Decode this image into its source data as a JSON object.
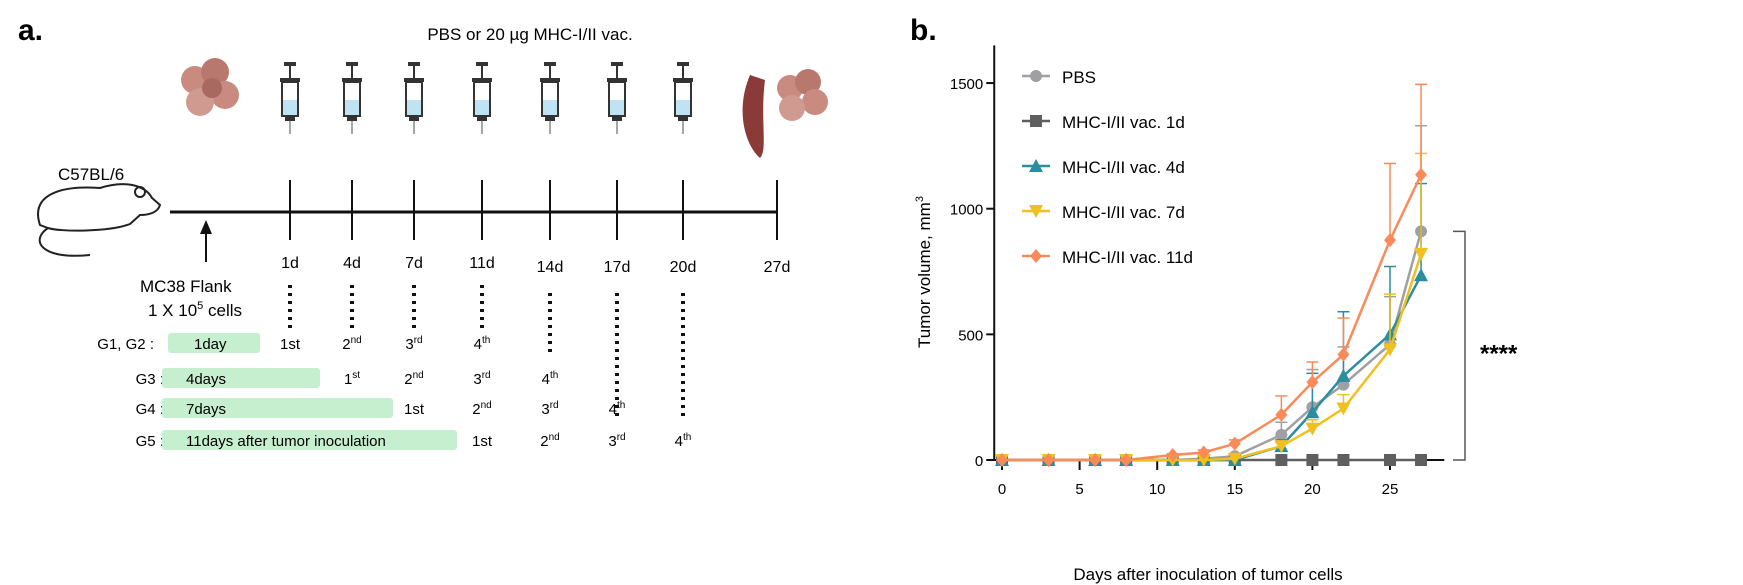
{
  "panel_a": {
    "label": "a.",
    "treatment_title": "PBS or 20 µg MHC-I/II vac.",
    "mouse_strain": "C57BL/6",
    "inoculation": {
      "line1": "MC38 Flank",
      "line2_pre": "1 X 10",
      "line2_sup": "5",
      "line2_post": " cells"
    },
    "timepoints": [
      "1d",
      "4d",
      "7d",
      "11d",
      "14d",
      "17d",
      "20d",
      "27d"
    ],
    "groups": [
      {
        "name": "G1, G2 :",
        "delay": "1day",
        "doses": [
          [
            "1st",
            ""
          ],
          [
            "2",
            "nd"
          ],
          [
            "3",
            "rd"
          ],
          [
            "4",
            "th"
          ]
        ]
      },
      {
        "name": "G3 :",
        "delay": "4days",
        "doses": [
          [
            "1",
            "st"
          ],
          [
            "2",
            "nd"
          ],
          [
            "3",
            "rd"
          ],
          [
            "4",
            "th"
          ]
        ]
      },
      {
        "name": "G4 :",
        "delay": "7days",
        "doses": [
          [
            "1st",
            ""
          ],
          [
            "2",
            "nd"
          ],
          [
            "3",
            "rd"
          ],
          [
            "4",
            "th"
          ]
        ]
      },
      {
        "name": "G5 :",
        "delay": "11days after tumor inoculation",
        "doses": [
          [
            "1st",
            ""
          ],
          [
            "2",
            "nd"
          ],
          [
            "3",
            "rd"
          ],
          [
            "4",
            "th"
          ]
        ]
      }
    ],
    "colors": {
      "delay_box": "#c6efcf",
      "tumor": "#c98a80",
      "spleen": "#8b3a3a",
      "syringe_fluid": "#bfe3f2"
    }
  },
  "panel_b": {
    "label": "b."
  },
  "chart_data": {
    "type": "line",
    "xlabel": "Days after inoculation of tumor cells",
    "ylabel": "Tumor volume, mm",
    "ylabel_sup": "3",
    "xlim": [
      -1,
      28
    ],
    "ylim": [
      0,
      1600
    ],
    "xticks": [
      0,
      5,
      10,
      15,
      20,
      25
    ],
    "yticks": [
      0,
      500,
      1000,
      1500
    ],
    "grid": false,
    "legend_position": "top-left",
    "x": [
      0,
      3,
      6,
      8,
      11,
      13,
      15,
      18,
      20,
      22,
      25,
      27
    ],
    "series": [
      {
        "name": "PBS",
        "color": "#a0a0a4",
        "marker": "circle",
        "values": [
          0,
          0,
          0,
          0,
          0,
          5,
          15,
          100,
          210,
          300,
          460,
          910
        ],
        "error_upper": [
          0,
          0,
          0,
          0,
          0,
          10,
          25,
          150,
          360,
          450,
          650,
          1330
        ]
      },
      {
        "name": "MHC-I/II vac. 1d",
        "color": "#5f5f5f",
        "marker": "square",
        "values": [
          0,
          0,
          0,
          0,
          0,
          0,
          0,
          0,
          0,
          0,
          0,
          0
        ],
        "error_upper": [
          0,
          0,
          0,
          0,
          0,
          0,
          0,
          0,
          0,
          0,
          0,
          0
        ]
      },
      {
        "name": "MHC-I/II vac. 4d",
        "color": "#2a8ea0",
        "marker": "triangle-up",
        "values": [
          0,
          0,
          0,
          0,
          0,
          0,
          0,
          55,
          190,
          335,
          500,
          735
        ],
        "error_upper": [
          0,
          0,
          0,
          0,
          0,
          0,
          0,
          80,
          345,
          590,
          770,
          1100
        ]
      },
      {
        "name": "MHC-I/II vac. 7d",
        "color": "#f0c020",
        "marker": "triangle-down",
        "values": [
          0,
          0,
          0,
          0,
          0,
          0,
          5,
          55,
          125,
          205,
          440,
          820
        ],
        "error_upper": [
          0,
          0,
          0,
          0,
          0,
          0,
          10,
          70,
          160,
          260,
          660,
          1220
        ]
      },
      {
        "name": "MHC-I/II vac. 11d",
        "color": "#fb8a5a",
        "marker": "diamond",
        "values": [
          0,
          0,
          0,
          0,
          20,
          30,
          65,
          180,
          310,
          420,
          875,
          1135
        ],
        "error_upper": [
          0,
          0,
          0,
          0,
          25,
          40,
          80,
          255,
          390,
          565,
          1180,
          1495
        ]
      }
    ],
    "annotation": "****"
  }
}
